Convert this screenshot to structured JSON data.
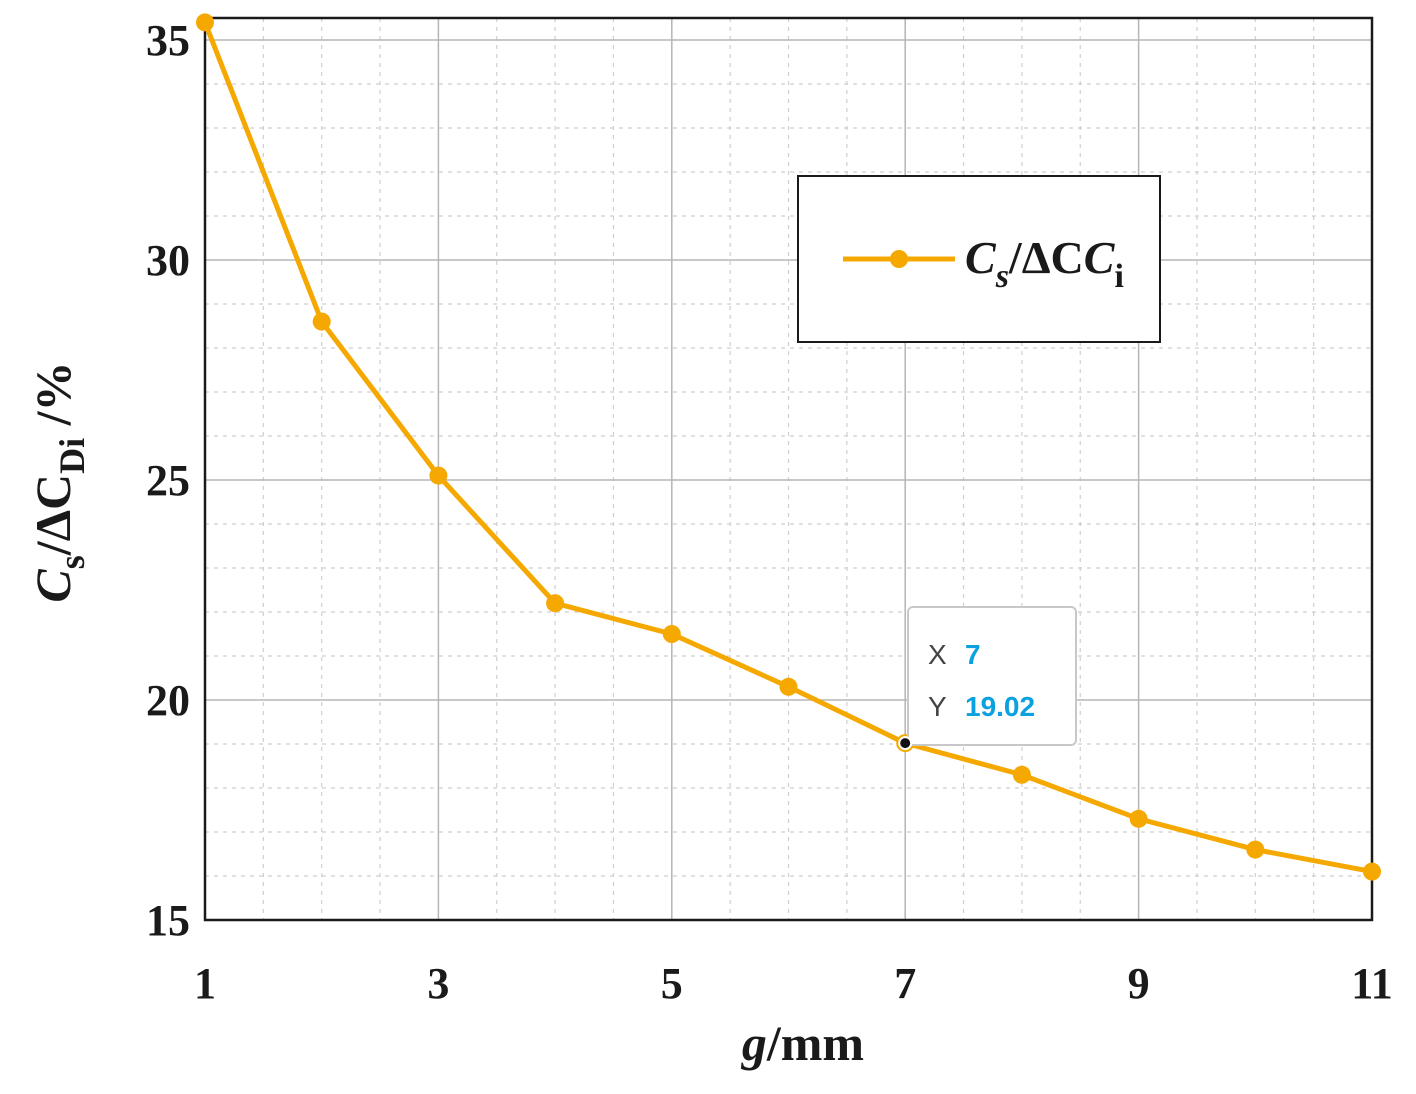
{
  "chart_data": {
    "type": "line",
    "x": [
      1,
      2,
      3,
      4,
      5,
      6,
      7,
      8,
      9,
      10,
      11
    ],
    "series": [
      {
        "name": "Cs/ΔCi",
        "values": [
          35.4,
          28.6,
          25.1,
          22.2,
          21.5,
          20.3,
          19.02,
          18.3,
          17.3,
          16.6,
          16.1
        ]
      }
    ],
    "xlabel": {
      "italic": "g",
      "rest": "/mm"
    },
    "ylabel": {
      "c1": "C",
      "sub1": "s",
      "mid": "/ΔC",
      "sub2": "Di",
      "tail": " /%"
    },
    "xlim": [
      1,
      11
    ],
    "ylim": [
      15,
      35.5
    ],
    "xticks": [
      "1",
      "3",
      "5",
      "7",
      "9",
      "11"
    ],
    "yticks": [
      "15",
      "20",
      "25",
      "30",
      "35"
    ],
    "grid": true,
    "legend": {
      "position": "top-right",
      "c": "C",
      "sub_s": "s",
      "mid": "/ΔC",
      "sub_i": "i"
    },
    "datatip": {
      "x_key": "X",
      "x_value": "7",
      "y_key": "Y",
      "y_value": "19.02",
      "point_x": 7,
      "point_y": 19.02
    },
    "colors": {
      "series": "#f5a800",
      "axis": "#1a1a1a",
      "grid_major": "#b5b5b5",
      "grid_minor": "#cfcfcf",
      "datatip_value": "#0aa1e0"
    }
  }
}
